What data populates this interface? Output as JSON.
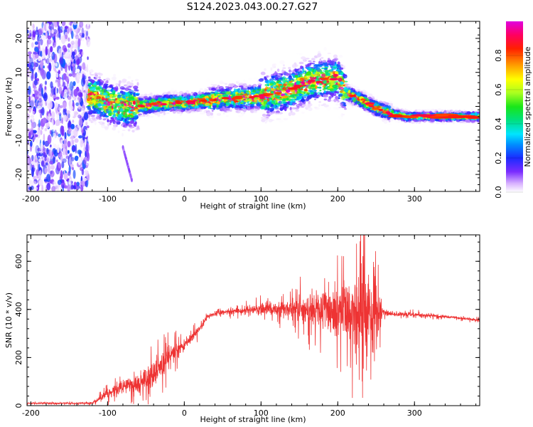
{
  "title": "S124.2023.043.00.27.G27",
  "colorbar": {
    "label": "Normalized spectral amplitude",
    "ticks": [
      "0.0",
      "0.2",
      "0.4",
      "0.6",
      "0.8"
    ],
    "tick_values": [
      0.0,
      0.2,
      0.4,
      0.6,
      0.8
    ],
    "range": [
      0,
      1
    ],
    "colormap": "gist_ncar-like (white→purple→blue→cyan→green→yellow→orange→red→magenta)"
  },
  "chart_data": [
    {
      "type": "heatmap",
      "panel": "top",
      "title": "S124.2023.043.00.27.G27",
      "xlabel": "Height of straight line (km)",
      "ylabel": "Frequency (Hz)",
      "xlim": [
        -205,
        385
      ],
      "ylim": [
        -25,
        25
      ],
      "xticks": [
        -200,
        -100,
        0,
        100,
        200,
        300
      ],
      "xtick_labels": [
        "-200",
        "-100",
        "0",
        "100",
        "200",
        "300"
      ],
      "yticks": [
        -20,
        -10,
        0,
        10,
        20
      ],
      "ytick_labels": [
        "-20",
        "-10",
        "0",
        "10",
        "20"
      ],
      "grid": false,
      "value_range": [
        0,
        1
      ],
      "ridge": {
        "x": [
          -115,
          -100,
          -80,
          -60,
          -40,
          -20,
          0,
          20,
          40,
          60,
          80,
          100,
          120,
          140,
          160,
          180,
          200,
          210,
          230,
          250,
          270,
          290,
          320,
          350,
          380
        ],
        "y": [
          3,
          1,
          0,
          0,
          0.5,
          1,
          1,
          1.5,
          2,
          2.5,
          2.5,
          3,
          4,
          5,
          7,
          8,
          8,
          4,
          2,
          -0.5,
          -2,
          -3,
          -3,
          -3,
          -3
        ]
      },
      "noise_region_x": [
        -205,
        -125
      ]
    },
    {
      "type": "line",
      "panel": "bottom",
      "xlabel": "Height of straight line (km)",
      "ylabel": "SNR (10 * v/v)",
      "xlim": [
        -205,
        385
      ],
      "ylim": [
        0,
        710
      ],
      "xticks": [
        -200,
        -100,
        0,
        100,
        200,
        300
      ],
      "xtick_labels": [
        "-200",
        "-100",
        "0",
        "100",
        "200",
        "300"
      ],
      "yticks": [
        0,
        200,
        400,
        600
      ],
      "ytick_labels": [
        "0",
        "200",
        "400",
        "600"
      ],
      "grid": false,
      "color": "#ee3333",
      "envelope": {
        "x": [
          -205,
          -120,
          -100,
          -80,
          -60,
          -40,
          -20,
          0,
          20,
          30,
          50,
          80,
          100,
          130,
          160,
          200,
          220,
          250,
          258,
          270,
          300,
          340,
          385
        ],
        "mean": [
          10,
          10,
          50,
          80,
          90,
          130,
          200,
          250,
          320,
          370,
          390,
          395,
          400,
          400,
          400,
          400,
          400,
          400,
          390,
          380,
          380,
          370,
          355
        ],
        "spread": [
          4,
          5,
          30,
          40,
          55,
          80,
          70,
          40,
          25,
          15,
          15,
          25,
          35,
          50,
          100,
          170,
          220,
          240,
          30,
          15,
          12,
          8,
          8
        ]
      }
    }
  ]
}
